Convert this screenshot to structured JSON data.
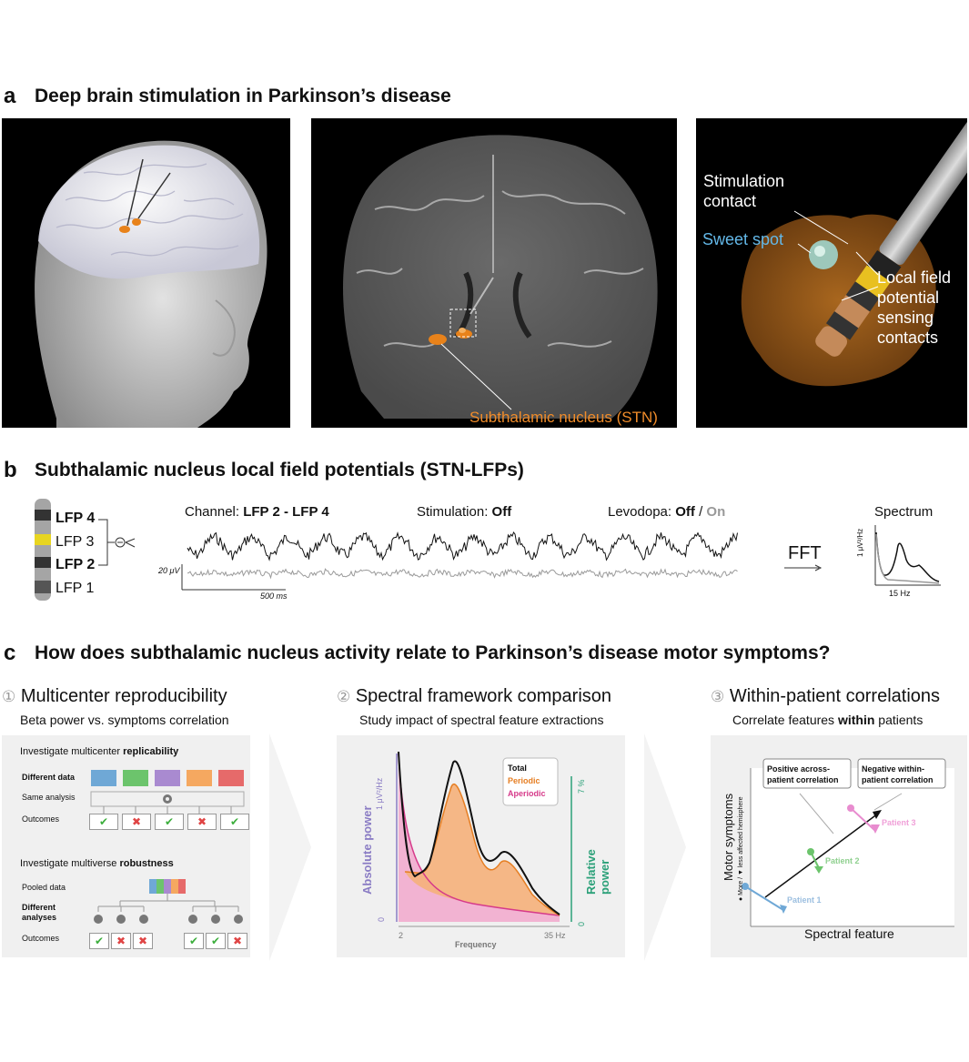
{
  "section_a": {
    "letter": "a",
    "title": "Deep brain stimulation in Parkinson’s disease",
    "stn_label": "Subthalamic nucleus (STN)",
    "stimulation_contact": [
      "Stimulation",
      "contact"
    ],
    "sweet_spot": "Sweet spot",
    "lfp_contacts": [
      "Local field",
      "potential",
      "sensing",
      "contacts"
    ]
  },
  "section_b": {
    "letter": "b",
    "title": "Subthalamic nucleus local field potentials (STN-LFPs)",
    "lfp_labels": [
      "LFP 4",
      "LFP 3",
      "LFP 2",
      "LFP 1"
    ],
    "channel_prefix": "Channel: ",
    "channel_value": "LFP 2 - LFP 4",
    "stim_prefix": "Stimulation: ",
    "stim_value": "Off",
    "levo_prefix": "Levodopa: ",
    "levo_off": "Off",
    "levo_sep": " / ",
    "levo_on": "On",
    "scale_v": "20 μV",
    "scale_t": "500 ms",
    "fft": "FFT",
    "spectrum_title": "Spectrum",
    "spectrum_ylabel": "1 μV²/Hz",
    "spectrum_xlabel": "15 Hz"
  },
  "section_c": {
    "letter": "c",
    "title": "How does subthalamic nucleus activity relate to Parkinson’s disease motor symptoms?",
    "col1": {
      "num": "①",
      "title": "Multicenter reproducibility",
      "subtitle": "Beta power vs. symptoms correlation",
      "replic_prefix": "Investigate multicenter ",
      "replic_bold": "replicability",
      "row_labels": [
        "Different data",
        "Same analysis",
        "Outcomes"
      ],
      "outcomes_top": [
        "✔",
        "✖",
        "✔",
        "✖",
        "✔"
      ],
      "robust_prefix": "Investigate multiverse ",
      "robust_bold": "robustness",
      "pooled": "Pooled data",
      "different_analyses": [
        "Different",
        "analyses"
      ],
      "outcomes_label": "Outcomes",
      "outcomes_bottom": [
        "✔",
        "✖",
        "✖",
        "✔",
        "✔",
        "✖"
      ],
      "colors": [
        "#6fa8d6",
        "#6cc46c",
        "#a98ad0",
        "#f5a860",
        "#e66a6a"
      ]
    },
    "col2": {
      "num": "②",
      "title": "Spectral framework comparison",
      "subtitle": "Study impact of spectral feature extractions",
      "legend": [
        "Total",
        "Periodic",
        "Aperiodic"
      ],
      "ylabel_left": "Absolute power",
      "ylabel_right": "Relative power",
      "yticks_left": [
        "1 μV²/Hz",
        "0"
      ],
      "yticks_right": [
        "7 %",
        "0"
      ],
      "xticks": [
        "2",
        "35 Hz"
      ],
      "xlabel": "Frequency"
    },
    "col3": {
      "num": "③",
      "title": "Within-patient correlations",
      "subtitle_prefix": "Correlate features ",
      "subtitle_bold": "within",
      "subtitle_suffix": " patients",
      "box1": [
        "Positive across-",
        "patient correlation"
      ],
      "box2": [
        "Negative within-",
        "patient correlation"
      ],
      "patients": [
        "Patient 1",
        "Patient 2",
        "Patient 3"
      ],
      "ylabel": "Motor symptoms",
      "ylabel_sub": "● More / ▼ less affected hemisphere",
      "xlabel": "Spectral feature"
    }
  }
}
